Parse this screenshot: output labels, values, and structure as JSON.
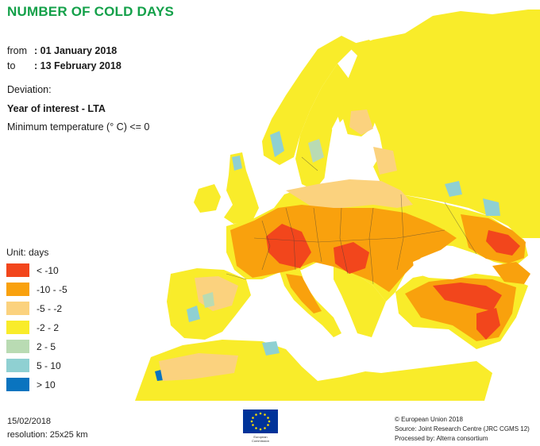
{
  "title": "NUMBER OF COLD DAYS",
  "period": {
    "from_label": "from",
    "from_value": ": 01 January 2018",
    "to_label": "to",
    "to_value": ": 13 February 2018"
  },
  "deviation_label": "Deviation:",
  "year_label": "Year of interest - LTA",
  "min_temp_label": "Minimum temperature (° C) <= 0",
  "legend": {
    "unit": "Unit:  days",
    "items": [
      {
        "label": "< -10",
        "color": "#f2461c"
      },
      {
        "label": "-10 - -5",
        "color": "#f9a10d"
      },
      {
        "label": "-5 - -2",
        "color": "#fbd27e"
      },
      {
        "label": "-2 - 2",
        "color": "#f9ec2a"
      },
      {
        "label": "2 - 5",
        "color": "#b9dbb3"
      },
      {
        "label": "5 - 10",
        "color": "#8fd0d2"
      },
      {
        "label": "> 10",
        "color": "#0a74bf"
      }
    ]
  },
  "footer": {
    "date": "15/02/2018",
    "resolution": "resolution:  25x25 km",
    "copyright": "© European Union 2018",
    "source": "Source: Joint Research Centre (JRC CGMS 12)",
    "processed": "Processed by: Alterra consortium",
    "logo_text_line1": "European",
    "logo_text_line2": "Commission"
  },
  "colors": {
    "title": "#13a049",
    "land_base": "#f9ec2a",
    "sea": "#ffffff",
    "eu_blue": "#003399",
    "eu_star": "#ffdd00"
  }
}
